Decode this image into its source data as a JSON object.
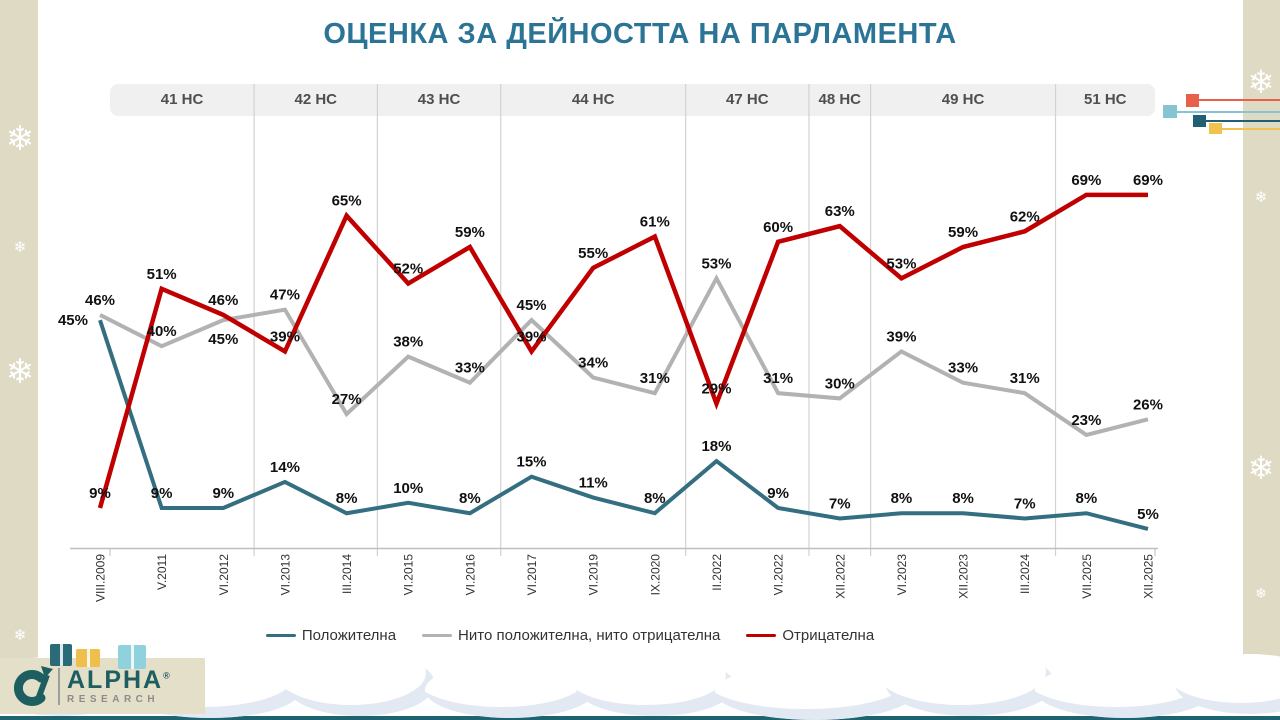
{
  "title": "ОЦЕНКА ЗА ДЕЙНОСТТА НА ПАРЛАМЕНТА",
  "chart_data": {
    "type": "line",
    "x": [
      "VIII.2009",
      "V.2011",
      "VI.2012",
      "VI.2013",
      "III.2014",
      "VI.2015",
      "VI.2016",
      "VI.2017",
      "VI.2019",
      "IX.2020",
      "II.2022",
      "VI.2022",
      "XII.2022",
      "VI.2023",
      "XII.2023",
      "III.2024",
      "VII.2025",
      "XII.2025"
    ],
    "series": [
      {
        "name": "Положителна",
        "color": "#336f80",
        "values": [
          45,
          9,
          9,
          14,
          8,
          10,
          8,
          15,
          11,
          8,
          18,
          9,
          7,
          8,
          8,
          7,
          8,
          5
        ]
      },
      {
        "name": "Нито положителна, нито отрицателна",
        "color": "#b2b2b2",
        "values": [
          46,
          40,
          45,
          47,
          27,
          38,
          33,
          45,
          34,
          31,
          53,
          31,
          30,
          39,
          33,
          31,
          23,
          26
        ]
      },
      {
        "name": "Отрицателна",
        "color": "#c00000",
        "values": [
          9,
          51,
          46,
          39,
          65,
          52,
          59,
          39,
          55,
          61,
          29,
          60,
          63,
          53,
          59,
          62,
          69,
          69
        ]
      }
    ],
    "parliament_bands": [
      {
        "label": "41 НС",
        "from": 0,
        "to": 2
      },
      {
        "label": "42 НС",
        "from": 3,
        "to": 4
      },
      {
        "label": "43 НС",
        "from": 5,
        "to": 6
      },
      {
        "label": "44 НС",
        "from": 7,
        "to": 9
      },
      {
        "label": "47 НС",
        "from": 10,
        "to": 11
      },
      {
        "label": "48 НС",
        "from": 12,
        "to": 12
      },
      {
        "label": "49 НС",
        "from": 13,
        "to": 15
      },
      {
        "label": "51 НС",
        "from": 16,
        "to": 17
      }
    ],
    "ylim": [
      0,
      100
    ],
    "value_suffix": "%",
    "grid": "vertical-only",
    "legend_position": "bottom"
  },
  "branding": {
    "name": "ALPHA",
    "reg": "®",
    "sub": "RESEARCH"
  },
  "decor": {
    "snowflake": "❄",
    "tags": [
      "#e8604c",
      "#85c4d3",
      "#206072",
      "#f2c24e"
    ],
    "gifts": [
      "#2a6b77",
      "#eec04b",
      "#8fd2dd"
    ]
  },
  "colors": {
    "title": "#2b7495",
    "band_bg": "#f0f0f0",
    "side_panel": "#dedac4",
    "bottom_bar": "#1d6370",
    "positive": "#336f80",
    "neutral": "#b2b2b2",
    "negative": "#c00000"
  }
}
